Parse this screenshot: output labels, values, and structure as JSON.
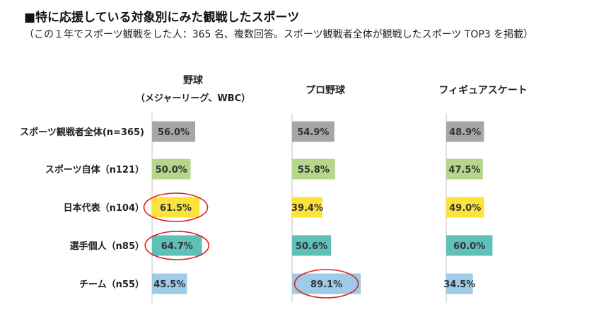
{
  "header": {
    "title": "■特に応援している対象別にみた観戦したスポーツ",
    "subtitle": "（この１年でスポーツ観戦をした人：365 名、複数回答。スポーツ観戦者全体が観戦したスポーツ TOP3 を掲載）"
  },
  "chart_data": {
    "type": "bar",
    "orientation": "horizontal",
    "title": "■特に応援している対象別にみた観戦したスポーツ",
    "categories": [
      "スポーツ観戦者全体(n=365)",
      "スポーツ自体（n121）",
      "日本代表（n104）",
      "選手個人（n85）",
      "チーム（n55）"
    ],
    "category_colors": [
      "#a6a6a6",
      "#b5d68b",
      "#fce33b",
      "#5fbfb9",
      "#9dcbe8"
    ],
    "panels": [
      {
        "name": "野球",
        "subname": "（メジャーリーグ、WBC）",
        "values": [
          56.0,
          50.0,
          61.5,
          64.7,
          45.5
        ],
        "highlighted": [
          2,
          3
        ]
      },
      {
        "name": "プロ野球",
        "subname": "",
        "values": [
          54.9,
          55.8,
          39.4,
          50.6,
          89.1
        ],
        "highlighted": [
          4
        ]
      },
      {
        "name": "フィギュアスケート",
        "subname": "",
        "values": [
          48.9,
          47.5,
          49.0,
          60.0,
          34.5
        ],
        "highlighted": []
      }
    ],
    "value_format": "{v}%",
    "xlim": [
      0,
      100
    ],
    "highlight_color": "#e02020",
    "grid": false,
    "legend": "none"
  }
}
